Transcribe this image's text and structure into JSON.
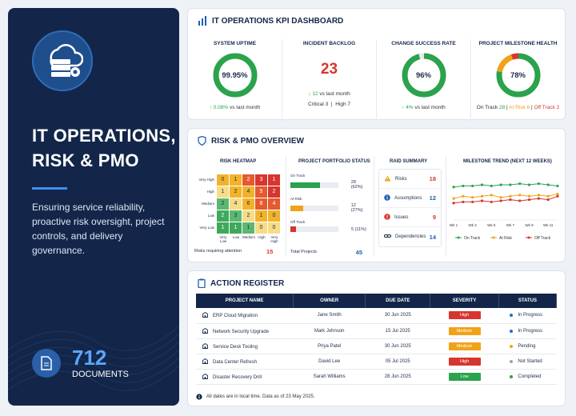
{
  "sidebar": {
    "title_line1": "IT OPERATIONS,",
    "title_line2": "RISK & PMO",
    "description": "Ensuring service reliability, proactive risk oversight, project controls, and delivery governance.",
    "doc_count": "712",
    "doc_label": "DOCUMENTS"
  },
  "kpi_panel": {
    "title": "IT OPERATIONS KPI DASHBOARD",
    "uptime": {
      "title": "SYSTEM UPTIME",
      "value": "99.95%",
      "delta": "↑ 0.08%",
      "delta_text": " vs last month",
      "fraction": 0.9995
    },
    "backlog": {
      "title": "INCIDENT BACKLOG",
      "value": "23",
      "delta": "↓ 12",
      "delta_text": " vs last month",
      "critical": "Critical 3",
      "high": "High 7"
    },
    "change": {
      "title": "CHANGE SUCCESS RATE",
      "value": "96%",
      "delta": "↑ 4%",
      "delta_text": " vs last month",
      "fraction": 0.96
    },
    "milestone": {
      "title": "PROJECT MILESTONE HEALTH",
      "value": "78%",
      "on_track": "On Track",
      "on_track_n": "28",
      "at_risk": "At Risk",
      "at_risk_n": "6",
      "off_track": "Off Track",
      "off_track_n": "2"
    }
  },
  "overview": {
    "title": "RISK & PMO OVERVIEW",
    "heatmap": {
      "title": "RISK HEATMAP",
      "rows": [
        "Very High",
        "High",
        "Medium",
        "Low",
        "Very Low"
      ],
      "cols": [
        "Very Low",
        "Low",
        "Medium",
        "High",
        "Very High"
      ],
      "values": [
        [
          "0",
          "1",
          "2",
          "3",
          "1"
        ],
        [
          "1",
          "2",
          "4",
          "5",
          "2"
        ],
        [
          "2",
          "4",
          "6",
          "8",
          "4"
        ],
        [
          "2",
          "3",
          "2",
          "1",
          "0"
        ],
        [
          "1",
          "1",
          "1",
          "0",
          "0"
        ]
      ],
      "colors": [
        [
          "#f2b32b",
          "#f2b32b",
          "#e55a2e",
          "#d6362f",
          "#d6362f"
        ],
        [
          "#f7dc86",
          "#f2b32b",
          "#f2b32b",
          "#e55a2e",
          "#d6362f"
        ],
        [
          "#5cb870",
          "#f7dc86",
          "#f2b32b",
          "#e55a2e",
          "#e55a2e"
        ],
        [
          "#3fa95b",
          "#5cb870",
          "#f7dc86",
          "#f2b32b",
          "#f2b32b"
        ],
        [
          "#3fa95b",
          "#3fa95b",
          "#5cb870",
          "#f7dc86",
          "#f7dc86"
        ]
      ],
      "footer": "Risks requiring attention",
      "footer_value": "15"
    },
    "portfolio": {
      "title": "PROJECT PORTFOLIO STATUS",
      "items": [
        {
          "label": "On Track",
          "value": "28 (62%)",
          "fraction": 0.62,
          "color": "#2ba24c"
        },
        {
          "label": "At Risk",
          "value": "12 (27%)",
          "fraction": 0.27,
          "color": "#f0a318"
        },
        {
          "label": "Off Track",
          "value": "5 (11%)",
          "fraction": 0.11,
          "color": "#d6362f"
        }
      ],
      "total_label": "Total Projects",
      "total_value": "45"
    },
    "raid": {
      "title": "RAID SUMMARY",
      "items": [
        {
          "name": "Risks",
          "value": "18",
          "icon": "warning-icon",
          "color": "#d6362f"
        },
        {
          "name": "Assumptions",
          "value": "12",
          "icon": "info-icon",
          "color": "#1f5fb0"
        },
        {
          "name": "Issues",
          "value": "9",
          "icon": "alert-icon",
          "color": "#d6362f"
        },
        {
          "name": "Dependencies",
          "value": "14",
          "icon": "link-icon",
          "color": "#1f5fb0"
        }
      ]
    }
  },
  "chart_data": {
    "type": "line",
    "title": "MILESTONE TREND (NEXT 12 WEEKS)",
    "categories": [
      "Wk 1",
      "Wk 2",
      "Wk 3",
      "Wk 4",
      "Wk 5",
      "Wk 6",
      "Wk 7",
      "Wk 8",
      "Wk 9",
      "Wk 10",
      "Wk 11",
      "Wk 12"
    ],
    "tick_labels": [
      "Wk 1",
      "Wk 3",
      "Wk 5",
      "Wk 7",
      "Wk 9",
      "Wk 11"
    ],
    "series": [
      {
        "name": "On Track",
        "color": "#2ba24c",
        "values": [
          26,
          27,
          27,
          28,
          27,
          28,
          28,
          29,
          28,
          29,
          28,
          27
        ]
      },
      {
        "name": "At Risk",
        "color": "#f0a318",
        "values": [
          16,
          18,
          17,
          18,
          19,
          17,
          18,
          19,
          18,
          19,
          18,
          20
        ]
      },
      {
        "name": "Off Track",
        "color": "#d6362f",
        "values": [
          12,
          13,
          13,
          14,
          13,
          14,
          15,
          14,
          15,
          16,
          15,
          18
        ]
      }
    ],
    "ylim": [
      0,
      35
    ],
    "legend": "bottom"
  },
  "actions": {
    "title": "ACTION REGISTER",
    "headers": [
      "PROJECT NAME",
      "OWNER",
      "DUE DATE",
      "SEVERITY",
      "STATUS"
    ],
    "rows": [
      {
        "project": "ERP Cloud Migration",
        "owner": "Jane Smith",
        "due": "30 Jun 2025",
        "severity": "High",
        "sev_color": "#d6362f",
        "status": "In Progress",
        "status_color": "#1f6fd0"
      },
      {
        "project": "Network Security Upgrade",
        "owner": "Mark Johnson",
        "due": "15 Jul 2025",
        "severity": "Medium",
        "sev_color": "#f0a318",
        "status": "In Progress",
        "status_color": "#1f6fd0"
      },
      {
        "project": "Service Desk Tooling",
        "owner": "Priya Patel",
        "due": "30 Jun 2025",
        "severity": "Medium",
        "sev_color": "#f0a318",
        "status": "Pending",
        "status_color": "#f0a318"
      },
      {
        "project": "Data Center Refresh",
        "owner": "David Lee",
        "due": "05 Jul 2025",
        "severity": "High",
        "sev_color": "#d6362f",
        "status": "Not Started",
        "status_color": "#9aa3b0"
      },
      {
        "project": "Disaster Recovery Drill",
        "owner": "Sarah Williams",
        "due": "28 Jun 2025",
        "severity": "Low",
        "sev_color": "#2ba24c",
        "status": "Completed",
        "status_color": "#2ba24c"
      }
    ],
    "footnote": "All dates are in local time. Data as of 23 May 2025."
  }
}
